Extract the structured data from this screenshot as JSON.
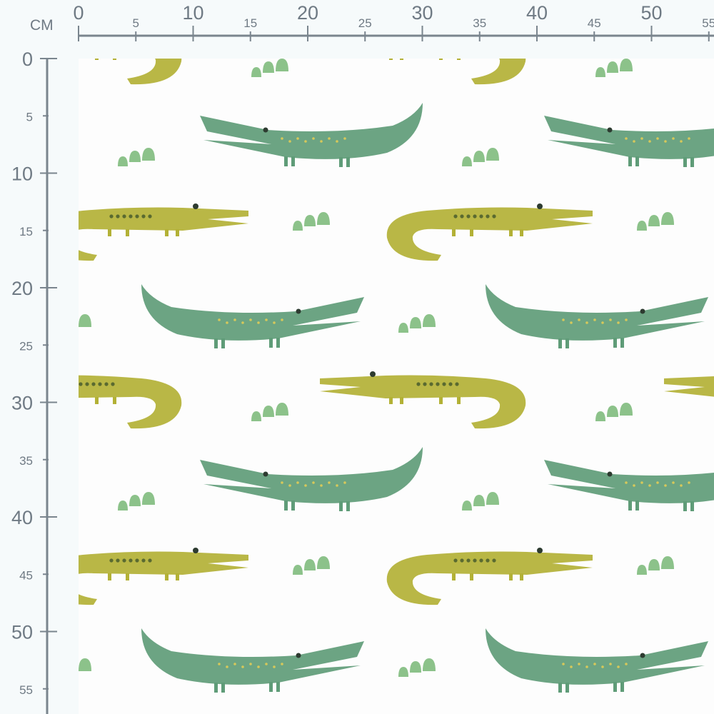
{
  "ruler": {
    "unit_label": "CM",
    "horizontal": {
      "major_labels": [
        "0",
        "10",
        "20",
        "30",
        "40",
        "50"
      ],
      "minor_labels": [
        "5",
        "15",
        "25",
        "35",
        "45",
        "55"
      ]
    },
    "vertical": {
      "major_labels": [
        "0",
        "10",
        "20",
        "30",
        "40",
        "50"
      ],
      "minor_labels": [
        "5",
        "15",
        "25",
        "35",
        "45",
        "55"
      ]
    },
    "color": "#7a858e"
  },
  "fabric": {
    "pattern": "watercolor crocodiles",
    "colors": {
      "green_croc": "#5f9c78",
      "olive_croc": "#b3b136",
      "plant": "#8cc28a",
      "background": "#fdfdfd"
    }
  }
}
